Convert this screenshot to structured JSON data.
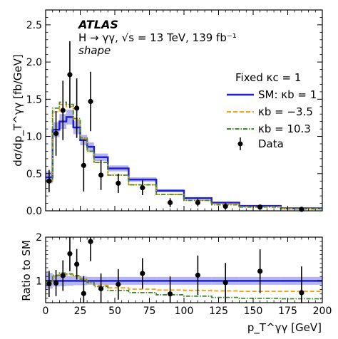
{
  "chart_data": [
    {
      "type": "line",
      "title": "ATLAS",
      "annotations": [
        "H → γγ, √s = 13 TeV, 139 fb⁻¹",
        "shape"
      ],
      "ylabel": "dσ/dp_T^γγ [fb/GeV]",
      "xlim": [
        0,
        200
      ],
      "ylim": [
        0,
        2.7
      ],
      "xticks": [
        "0",
        "25",
        "50",
        "75",
        "100",
        "125",
        "150",
        "175",
        "200"
      ],
      "yticks": [
        "0.0",
        "0.5",
        "1.0",
        "1.5",
        "2.0",
        "2.5"
      ],
      "legend_title": "Fixed κc = 1",
      "legend_position": "right",
      "bin_edges": [
        0,
        5,
        10,
        15,
        20,
        25,
        30,
        35,
        45,
        60,
        80,
        100,
        120,
        140,
        170,
        200
      ],
      "series": [
        {
          "name": "SM: κb = 1",
          "style": "step-solid",
          "color": "#1f1fd6",
          "band_color": "#a7a7f0",
          "values": [
            0.45,
            1.09,
            1.2,
            1.26,
            1.12,
            0.95,
            0.86,
            0.72,
            0.57,
            0.42,
            0.27,
            0.17,
            0.11,
            0.066,
            0.034
          ],
          "band_halfwidth": [
            0.08,
            0.1,
            0.1,
            0.1,
            0.09,
            0.07,
            0.06,
            0.05,
            0.04,
            0.03,
            0.02,
            0.015,
            0.01,
            0.008,
            0.006
          ]
        },
        {
          "name": "κb = −3.5",
          "style": "step-dashed",
          "color": "#ff9d0a",
          "values": [
            0.4,
            1.33,
            1.43,
            1.4,
            1.22,
            0.97,
            0.8,
            0.65,
            0.48,
            0.35,
            0.22,
            0.14,
            0.09,
            0.055,
            0.028
          ]
        },
        {
          "name": "κb = 10.3",
          "style": "step-dashdot",
          "color": "#3c8c2c",
          "values": [
            0.4,
            1.38,
            1.46,
            1.43,
            1.24,
            0.98,
            0.8,
            0.65,
            0.48,
            0.35,
            0.22,
            0.14,
            0.08,
            0.05,
            0.025
          ]
        },
        {
          "name": "Data",
          "style": "points",
          "color": "#000000",
          "x": [
            2.5,
            7.5,
            12.5,
            17.5,
            22.5,
            27.5,
            32.5,
            40,
            52.5,
            70,
            90,
            110,
            130,
            155,
            185
          ],
          "values": [
            0.4,
            1.04,
            1.35,
            1.83,
            1.38,
            0.61,
            1.47,
            0.48,
            0.37,
            0.31,
            0.11,
            0.11,
            0.06,
            0.05,
            0.02
          ],
          "err": [
            0.15,
            0.3,
            0.4,
            0.45,
            0.4,
            0.35,
            0.4,
            0.2,
            0.13,
            0.1,
            0.06,
            0.05,
            0.04,
            0.03,
            0.02
          ]
        }
      ]
    },
    {
      "type": "line",
      "ylabel": "Ratio to SM",
      "xlabel": "p_T^γγ [GeV]",
      "xlim": [
        0,
        200
      ],
      "ylim": [
        0.5,
        2
      ],
      "yticks": [
        "1",
        "2"
      ],
      "xticks": [
        "0",
        "25",
        "50",
        "75",
        "100",
        "125",
        "150",
        "175",
        "200"
      ],
      "bin_edges": [
        0,
        5,
        10,
        15,
        20,
        25,
        30,
        35,
        45,
        60,
        80,
        100,
        120,
        140,
        170,
        200
      ],
      "series": [
        {
          "name": "SM: κb = 1",
          "style": "line",
          "color": "#1f1fd6",
          "band_color": "#a7a7f0",
          "values": [
            1,
            1
          ],
          "band_halfwidth": [
            0.18,
            0.13,
            0.12,
            0.11,
            0.1,
            0.1,
            0.09,
            0.09,
            0.09,
            0.09,
            0.09,
            0.09,
            0.09,
            0.09,
            0.09
          ]
        },
        {
          "name": "κb = −3.5",
          "style": "step-dashed",
          "color": "#ff9d0a",
          "values": [
            0.98,
            1.1,
            1.15,
            1.14,
            1.1,
            1.03,
            0.96,
            0.9,
            0.84,
            0.81,
            0.79,
            0.78,
            0.77,
            0.76,
            0.76
          ]
        },
        {
          "name": "κb = 10.3",
          "style": "step-dashdot",
          "color": "#3c8c2c",
          "values": [
            0.98,
            1.13,
            1.18,
            1.16,
            1.12,
            1.04,
            0.96,
            0.87,
            0.78,
            0.73,
            0.68,
            0.65,
            0.62,
            0.6,
            0.59
          ]
        },
        {
          "name": "Data",
          "style": "points",
          "color": "#000000",
          "x": [
            2.5,
            7.5,
            12.5,
            17.5,
            22.5,
            27.5,
            32.5,
            40,
            52.5,
            70,
            90,
            110,
            130,
            155,
            185
          ],
          "values": [
            0.93,
            0.95,
            1.12,
            1.62,
            1.38,
            0.71,
            1.9,
            0.82,
            0.92,
            1.17,
            0.7,
            1.13,
            0.96,
            1.22,
            0.73
          ],
          "err": [
            0.3,
            0.3,
            0.35,
            0.4,
            0.35,
            0.4,
            0.45,
            0.35,
            0.35,
            0.35,
            0.4,
            0.45,
            0.45,
            0.5,
            0.6
          ]
        }
      ]
    }
  ]
}
